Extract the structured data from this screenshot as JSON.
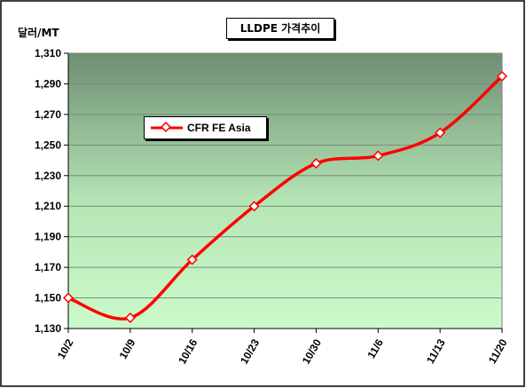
{
  "chart_data": {
    "type": "line",
    "title": "LLDPE 가격추이",
    "ylabel": "달러/MT",
    "xlabel": "",
    "categories": [
      "10/2",
      "10/9",
      "10/16",
      "10/23",
      "10/30",
      "11/6",
      "11/13",
      "11/20"
    ],
    "series": [
      {
        "name": "CFR FE Asia",
        "values": [
          1150,
          1137,
          1175,
          1210,
          1238,
          1243,
          1258,
          1295
        ]
      }
    ],
    "ylim": [
      1130,
      1310
    ],
    "y_ticks": [
      1130,
      1150,
      1170,
      1190,
      1210,
      1230,
      1250,
      1270,
      1290,
      1310
    ],
    "y_tick_labels": [
      "1,130",
      "1,150",
      "1,170",
      "1,190",
      "1,210",
      "1,230",
      "1,250",
      "1,270",
      "1,290",
      "1,310"
    ],
    "grid": true,
    "legend_position": "middle-left",
    "line_color": "#ff0000",
    "marker": "diamond",
    "marker_color": "#ffffff",
    "plot_background": "green gradient"
  }
}
